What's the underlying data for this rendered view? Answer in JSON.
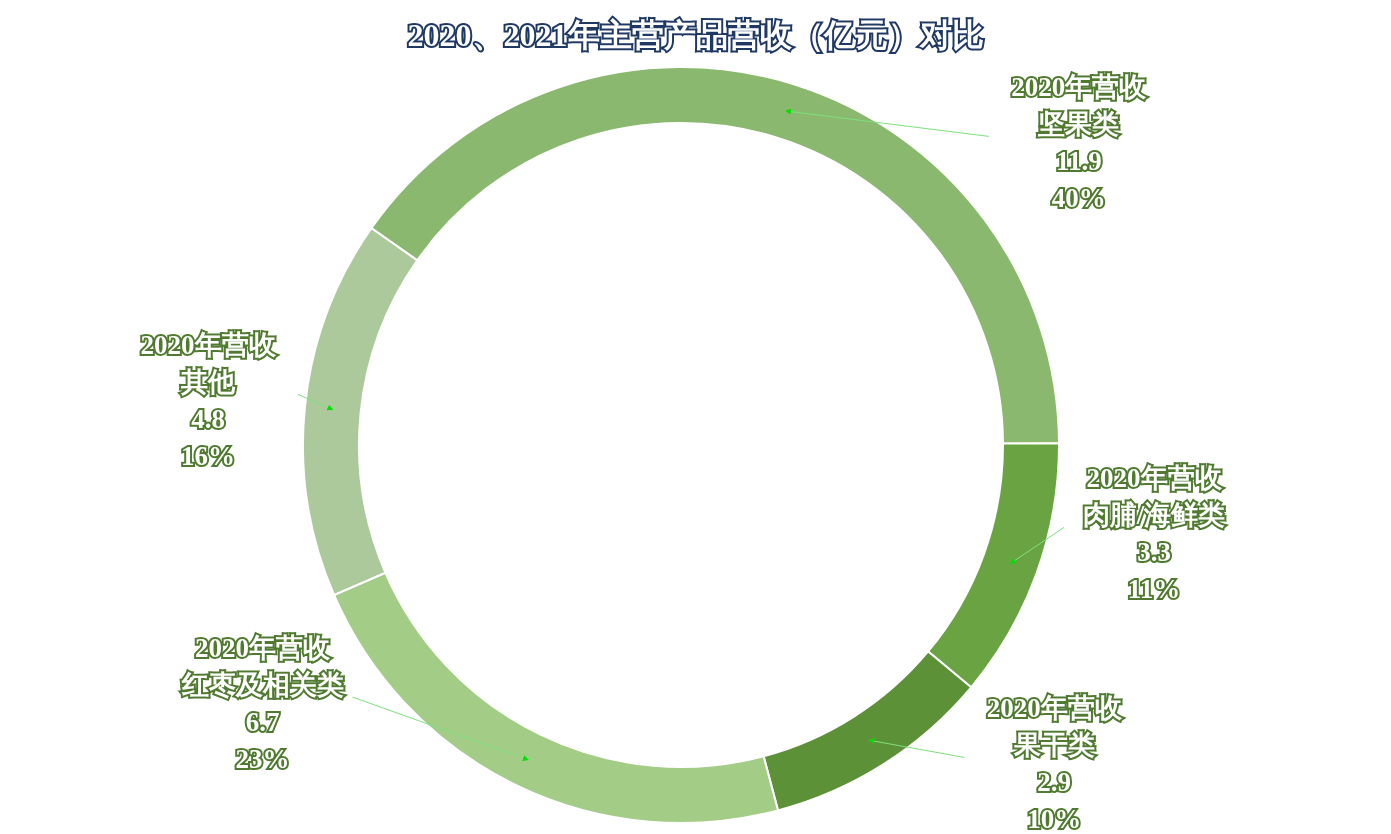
{
  "chart_data": {
    "type": "donut",
    "title": "2020、2021年主营产品营收（亿元）对比",
    "categories": [
      "坚果类",
      "肉脯/海鲜类",
      "果干类",
      "红枣及相关类",
      "其他"
    ],
    "colors": [
      "#8ab86e",
      "#6aa442",
      "#5d9138",
      "#a3cc86",
      "#abc99b"
    ],
    "series": [
      {
        "name": "2020年营收",
        "values": [
          11.9,
          3.3,
          2.9,
          6.7,
          4.8
        ]
      }
    ],
    "annotations": [
      {
        "text": "40%",
        "x": "坚果类"
      },
      {
        "text": "11%",
        "x": "肉脯/海鲜类"
      },
      {
        "text": "10%",
        "x": "果干类"
      },
      {
        "text": "23%",
        "x": "红枣及相关类"
      },
      {
        "text": "16%",
        "x": "其他"
      }
    ],
    "data_labels": true
  }
}
